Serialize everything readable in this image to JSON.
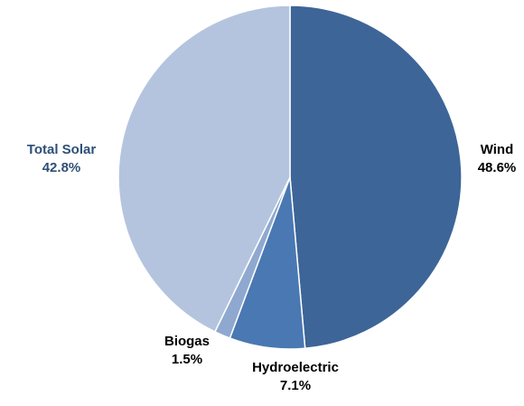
{
  "chart_data": {
    "type": "pie",
    "slices": [
      {
        "name": "Wind",
        "value": 48.6,
        "display": "48.6%",
        "color": "#3d6598",
        "label_color": "#000000"
      },
      {
        "name": "Hydroelectric",
        "value": 7.1,
        "display": "7.1%",
        "color": "#4a78b2",
        "label_color": "#000000"
      },
      {
        "name": "Biogas",
        "value": 1.5,
        "display": "1.5%",
        "color": "#8fa8d0",
        "label_color": "#000000"
      },
      {
        "name": "Total Solar",
        "value": 42.8,
        "display": "42.8%",
        "color": "#b5c4de",
        "label_color": "#2e4f77"
      }
    ],
    "start_angle_deg": 0,
    "direction": "clockwise",
    "legend": "none",
    "data_labels": "outside"
  }
}
